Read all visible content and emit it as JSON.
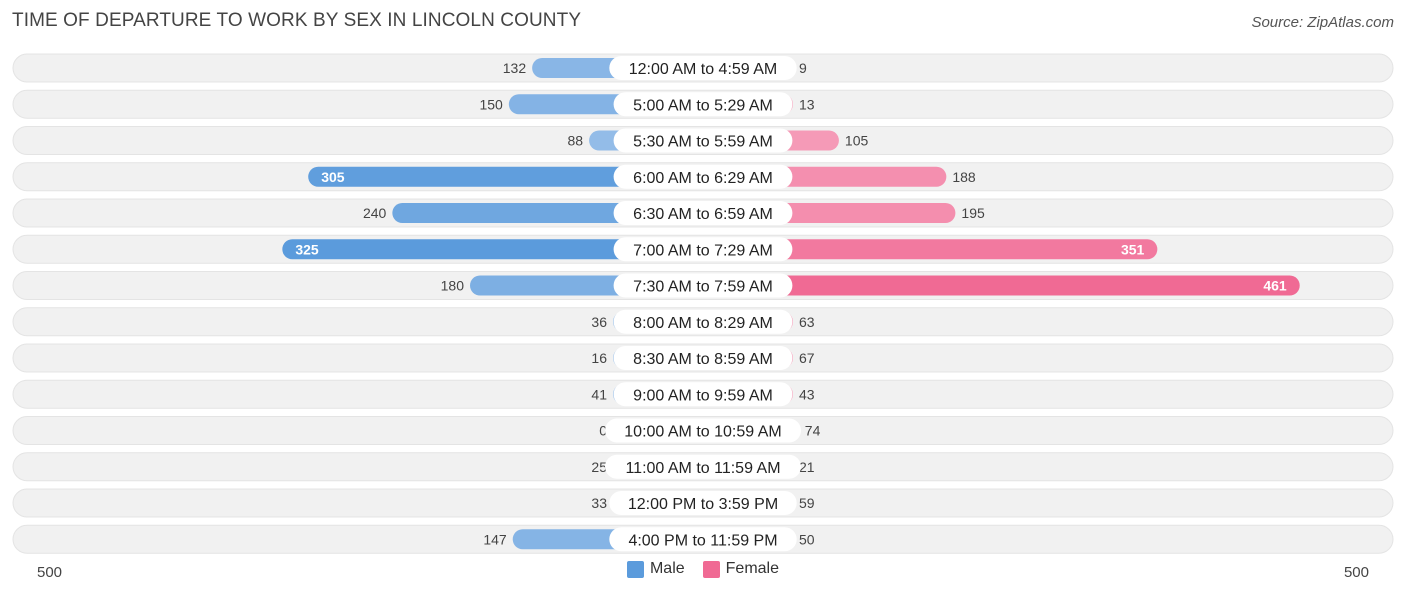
{
  "title": "TIME OF DEPARTURE TO WORK BY SEX IN LINCOLN COUNTY",
  "source": "Source: ZipAtlas.com",
  "colors": {
    "male_dark": "#5b9bdc",
    "male_light": "#a8c8ec",
    "female_dark": "#f06a94",
    "female_light": "#f7a8c1",
    "row_bg": "#f1f1f1"
  },
  "chart_data": {
    "type": "bar",
    "orientation": "horizontal-diverging",
    "categories": [
      "12:00 AM to 4:59 AM",
      "5:00 AM to 5:29 AM",
      "5:30 AM to 5:59 AM",
      "6:00 AM to 6:29 AM",
      "6:30 AM to 6:59 AM",
      "7:00 AM to 7:29 AM",
      "7:30 AM to 7:59 AM",
      "8:00 AM to 8:29 AM",
      "8:30 AM to 8:59 AM",
      "9:00 AM to 9:59 AM",
      "10:00 AM to 10:59 AM",
      "11:00 AM to 11:59 AM",
      "12:00 PM to 3:59 PM",
      "4:00 PM to 11:59 PM"
    ],
    "series": [
      {
        "name": "Male",
        "values": [
          132,
          150,
          88,
          305,
          240,
          325,
          180,
          36,
          16,
          41,
          0,
          25,
          33,
          147
        ]
      },
      {
        "name": "Female",
        "values": [
          9,
          13,
          105,
          188,
          195,
          351,
          461,
          63,
          67,
          43,
          74,
          21,
          59,
          50
        ]
      }
    ],
    "axis_min_label": "500",
    "axis_max_label": "500",
    "xlim": [
      -500,
      500
    ],
    "legend_position": "bottom-center"
  },
  "legend": {
    "male": "Male",
    "female": "Female"
  }
}
